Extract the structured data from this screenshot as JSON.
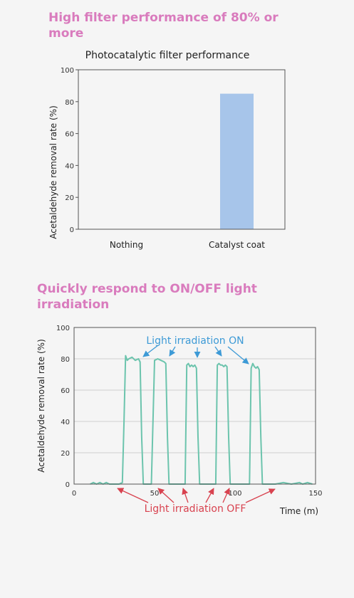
{
  "headings": {
    "performance": "High filter performance of 80% or more",
    "response": "Quickly respond to ON/OFF light irradiation"
  },
  "colors": {
    "heading": "#d97bbd",
    "bar": "#a7c5ea",
    "line": "#6cc4ad",
    "on_annotation": "#3d9ad6",
    "off_annotation": "#d8424f"
  },
  "chart_data": [
    {
      "type": "bar",
      "title": "Photocatalytic filter performance",
      "ylabel": "Acetaldehyde removal rate (%)",
      "xlabel": "",
      "categories": [
        "Nothing",
        "Catalyst coat"
      ],
      "values": [
        0,
        85
      ],
      "ylim": [
        0,
        100
      ],
      "yticks": [
        0,
        20,
        40,
        60,
        80,
        100
      ],
      "grid": false
    },
    {
      "type": "line",
      "title": "",
      "ylabel": "Acetaldehyde removal rate (%)",
      "xlabel": "Time (m)",
      "xlim": [
        0,
        150
      ],
      "ylim": [
        0,
        100
      ],
      "xticks": [
        0,
        50,
        100,
        150
      ],
      "yticks": [
        0,
        20,
        40,
        60,
        80,
        100
      ],
      "grid": true,
      "annotations": {
        "on": "Light irradiation ON",
        "off": "Light irradiation OFF"
      },
      "series": [
        {
          "x": [
            10,
            12,
            14,
            16,
            18,
            20,
            22,
            25,
            28,
            30,
            31,
            32,
            33,
            34,
            36,
            38,
            40,
            41,
            42,
            43,
            44,
            45,
            46,
            47,
            48,
            50,
            52,
            54,
            56,
            57,
            58,
            59,
            60,
            61,
            63,
            65,
            67,
            68,
            69,
            70,
            71,
            72,
            73,
            74,
            75,
            76,
            77,
            78,
            80,
            82,
            84,
            86,
            87,
            88,
            89,
            90,
            91,
            92,
            93,
            94,
            95,
            96,
            97,
            98,
            100,
            102,
            104,
            106,
            107,
            108,
            109,
            110,
            111,
            112,
            113,
            114,
            115,
            116,
            117,
            118,
            120,
            125,
            130,
            135,
            140,
            142,
            145,
            148
          ],
          "y": [
            0,
            1,
            0,
            1,
            0,
            1,
            0,
            0,
            0,
            1,
            40,
            82,
            79,
            80,
            81,
            79,
            80,
            78,
            30,
            0,
            0,
            0,
            0,
            0,
            0,
            79,
            80,
            79,
            78,
            77,
            30,
            0,
            0,
            0,
            0,
            0,
            0,
            0,
            0,
            76,
            77,
            75,
            76,
            75,
            76,
            74,
            30,
            0,
            0,
            0,
            0,
            0,
            0,
            0,
            76,
            77,
            76,
            76,
            75,
            76,
            75,
            30,
            0,
            0,
            0,
            0,
            0,
            0,
            0,
            0,
            0,
            74,
            77,
            75,
            74,
            75,
            73,
            30,
            0,
            0,
            0,
            0,
            1,
            0,
            1,
            0,
            1,
            0
          ]
        }
      ]
    }
  ]
}
